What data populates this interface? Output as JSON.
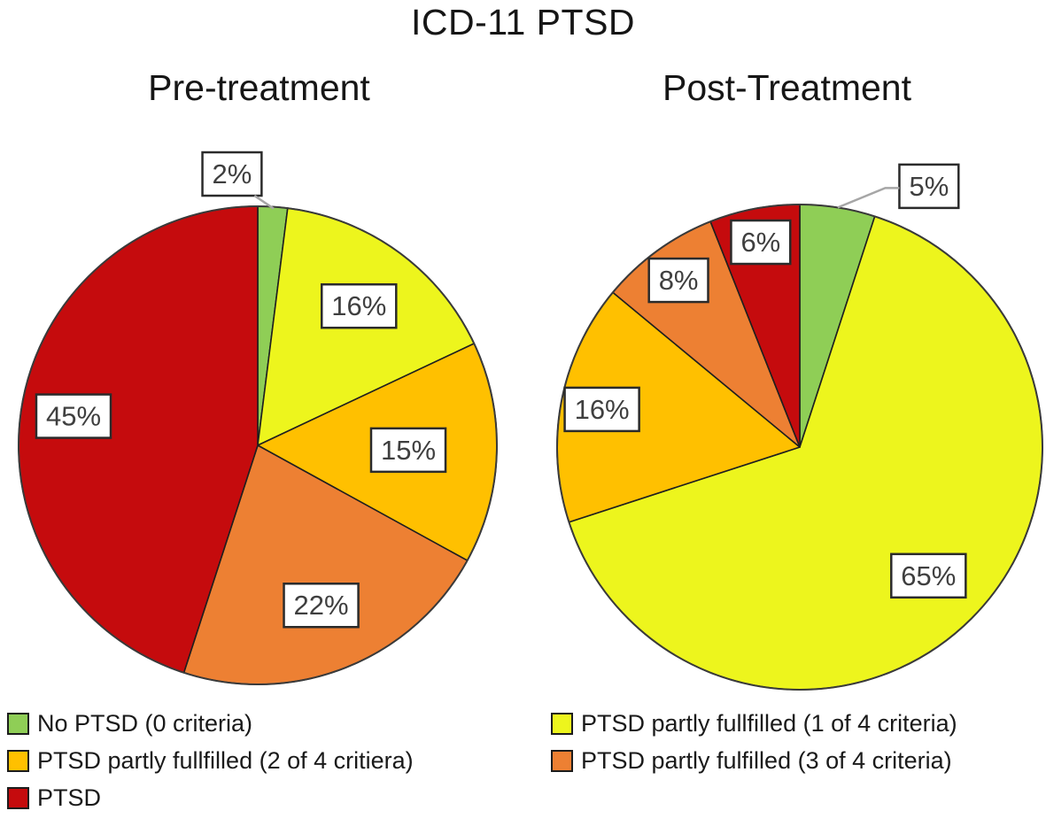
{
  "chart_data": {
    "type": "pie",
    "title": "ICD-11 PTSD",
    "legend_position": "bottom",
    "grid": false,
    "categories": [
      "No PTSD (0 criteria)",
      "PTSD partly fullfilled (1 of 4 criteria)",
      "PTSD partly fullfilled (2 of 4 critiera)",
      "PTSD partly fulfilled (3 of 4 criteria)",
      "PTSD"
    ],
    "colors": [
      "#8FCE56",
      "#EDF51D",
      "#FFC000",
      "#ED8033",
      "#C50B0D"
    ],
    "pies": [
      {
        "title": "Pre-treatment",
        "values": [
          2,
          16,
          15,
          22,
          45
        ],
        "labels": [
          "2%",
          "16%",
          "15%",
          "22%",
          "45%"
        ]
      },
      {
        "title": "Post-Treatment",
        "values": [
          5,
          65,
          16,
          8,
          6
        ],
        "labels": [
          "5%",
          "65%",
          "16%",
          "8%",
          "6%"
        ]
      }
    ],
    "legend": [
      {
        "label": "No PTSD (0 criteria)",
        "color": "#8FCE56"
      },
      {
        "label": "PTSD partly fullfilled (1 of 4 criteria)",
        "color": "#EDF51D"
      },
      {
        "label": "PTSD partly fullfilled (2 of 4 critiera)",
        "color": "#FFC000"
      },
      {
        "label": "PTSD partly fulfilled (3 of 4 criteria)",
        "color": "#ED8033"
      },
      {
        "label": "PTSD",
        "color": "#C50B0D"
      }
    ],
    "label_box_style": {
      "fill": "#ffffff",
      "border": "#2b2b2b",
      "text": "#3f3f3f"
    },
    "leader_color": "#A6A6A6"
  }
}
